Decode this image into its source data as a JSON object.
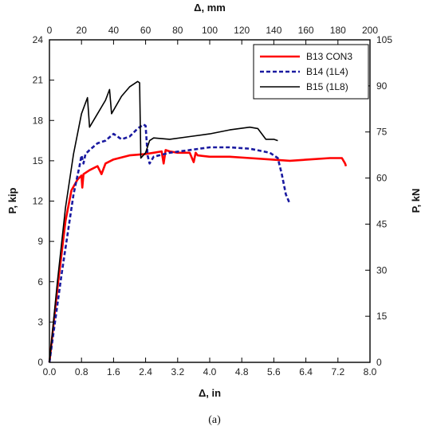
{
  "caption": "(a)",
  "chart_data": {
    "type": "line",
    "xlabel": "Δ, in",
    "ylabel": "P, kip",
    "x2label": "Δ, mm",
    "y2label": "P, kN",
    "xlim": [
      0,
      8
    ],
    "ylim": [
      0,
      24
    ],
    "x2lim": [
      0,
      200
    ],
    "y2lim": [
      0,
      105
    ],
    "xticks": [
      "0.0",
      "0.8",
      "1.6",
      "2.4",
      "3.2",
      "4.0",
      "4.8",
      "5.6",
      "6.4",
      "7.2",
      "8.0"
    ],
    "yticks": [
      "0",
      "3",
      "6",
      "9",
      "12",
      "15",
      "18",
      "21",
      "24"
    ],
    "x2ticks": [
      "0",
      "20",
      "40",
      "60",
      "80",
      "100",
      "120",
      "140",
      "160",
      "180",
      "200"
    ],
    "y2ticks": [
      "0",
      "15",
      "30",
      "45",
      "60",
      "75",
      "90",
      "105"
    ],
    "legend_position": "top-right",
    "grid": false,
    "series": [
      {
        "name": "B13 CON3",
        "color": "#ff0000",
        "dash": "solid",
        "x": [
          0,
          0.2,
          0.4,
          0.55,
          0.7,
          0.8,
          0.82,
          0.85,
          1.0,
          1.2,
          1.3,
          1.4,
          1.6,
          2.0,
          2.4,
          2.6,
          2.8,
          2.85,
          2.9,
          3.0,
          3.2,
          3.5,
          3.6,
          3.65,
          3.7,
          4.0,
          4.5,
          5.0,
          5.5,
          6.0,
          6.5,
          7.0,
          7.3,
          7.38,
          7.4
        ],
        "y": [
          0,
          5.5,
          10.5,
          12.8,
          13.6,
          13.9,
          13.0,
          14.0,
          14.3,
          14.6,
          14.0,
          14.8,
          15.1,
          15.4,
          15.5,
          15.6,
          15.7,
          14.8,
          15.8,
          15.7,
          15.6,
          15.6,
          14.9,
          15.6,
          15.4,
          15.3,
          15.3,
          15.2,
          15.1,
          15.0,
          15.1,
          15.2,
          15.2,
          14.8,
          14.6
        ]
      },
      {
        "name": "B14 (1L4)",
        "color": "#1a1aa0",
        "dash": "dash",
        "x": [
          0,
          0.3,
          0.6,
          0.75,
          0.8,
          0.85,
          0.9,
          1.0,
          1.2,
          1.4,
          1.6,
          1.8,
          2.0,
          2.2,
          2.35,
          2.4,
          2.45,
          2.5,
          2.6,
          3.0,
          3.5,
          4.0,
          4.5,
          5.0,
          5.5,
          5.7,
          5.8,
          5.9,
          6.0
        ],
        "y": [
          0,
          6.5,
          12.5,
          14.6,
          15.4,
          14.8,
          15.5,
          15.8,
          16.3,
          16.5,
          17.0,
          16.6,
          16.8,
          17.4,
          17.7,
          17.6,
          15.4,
          14.8,
          15.3,
          15.6,
          15.8,
          16.0,
          16.0,
          15.9,
          15.6,
          15.2,
          14.0,
          12.5,
          11.8
        ]
      },
      {
        "name": "B15 (1L8)",
        "color": "#000000",
        "dash": "solid",
        "x": [
          0,
          0.2,
          0.4,
          0.6,
          0.8,
          0.95,
          1.0,
          1.2,
          1.4,
          1.5,
          1.55,
          1.8,
          2.0,
          2.2,
          2.25,
          2.28,
          2.4,
          2.5,
          2.6,
          3.0,
          3.5,
          4.0,
          4.5,
          5.0,
          5.2,
          5.4,
          5.6,
          5.7
        ],
        "y": [
          0,
          6.0,
          11.5,
          15.5,
          18.5,
          19.7,
          17.5,
          18.5,
          19.5,
          20.3,
          18.5,
          19.8,
          20.5,
          20.9,
          20.8,
          15.2,
          15.6,
          16.5,
          16.7,
          16.6,
          16.8,
          17.0,
          17.3,
          17.5,
          17.4,
          16.6,
          16.6,
          16.5
        ]
      }
    ]
  }
}
